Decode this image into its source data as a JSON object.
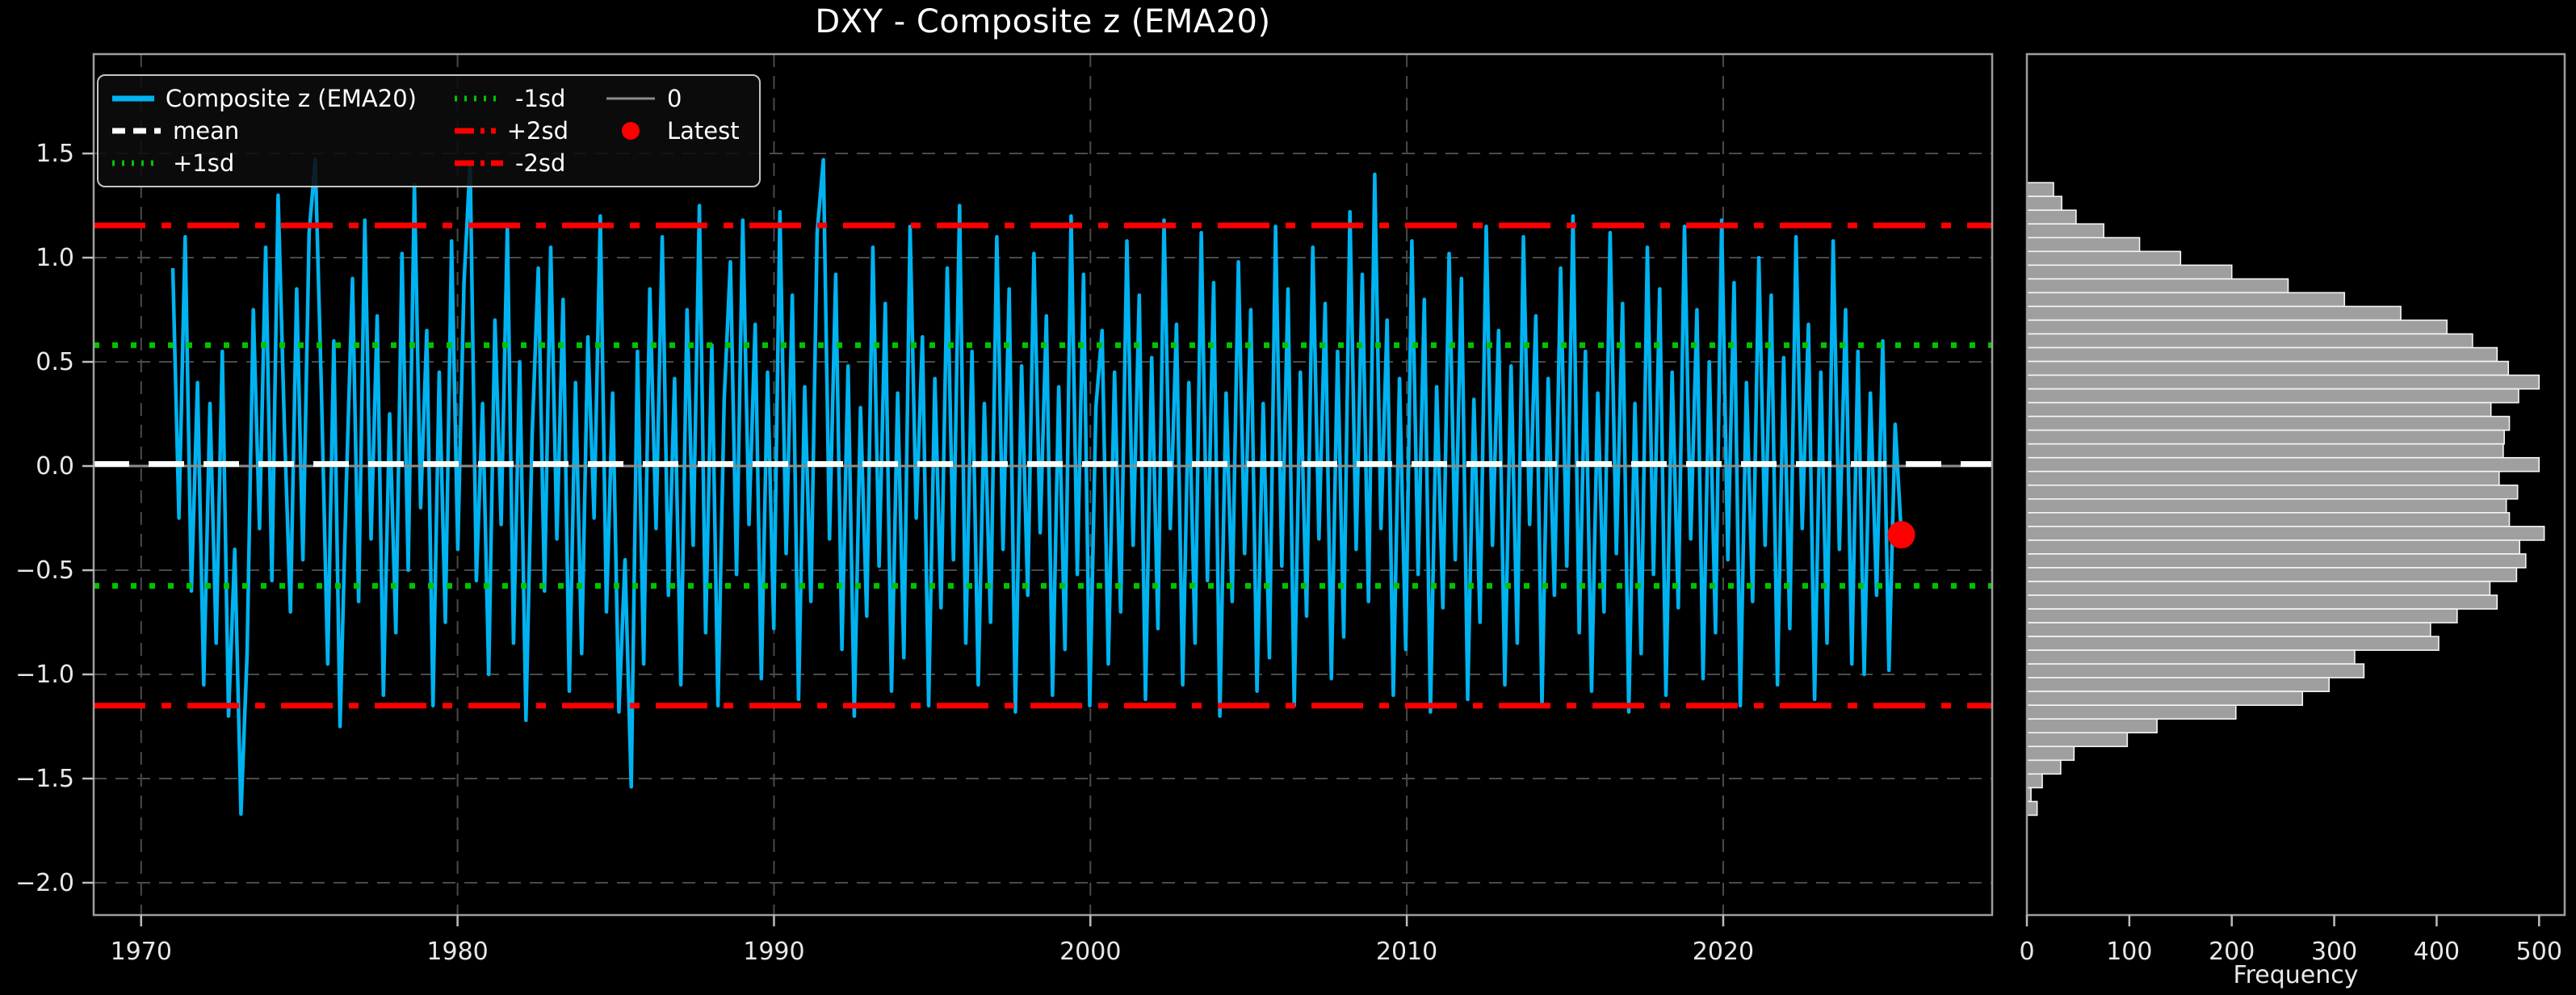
{
  "figure": {
    "title": "DXY - Composite z (EMA20)",
    "background": "#000000"
  },
  "colors": {
    "series": "#00B3F0",
    "mean": "#FFFFFF",
    "sd1": "#00C400",
    "sd2": "#FF0000",
    "zero": "#8C8C8C",
    "latest_dot": "#FF0000",
    "hist_bar": "#9F9F9F",
    "hist_bar_edge": "#F5F5F5",
    "tick_text": "#E8E8E8",
    "title_text": "#FFFFFF"
  },
  "legend": {
    "entries": [
      {
        "label": "Composite z (EMA20)",
        "style": "solid",
        "color": "#00B3F0"
      },
      {
        "label": "mean",
        "style": "dashed",
        "color": "#FFFFFF"
      },
      {
        "label": "+1sd",
        "style": "dotted",
        "color": "#00C400"
      },
      {
        "label": "-1sd",
        "style": "dotted",
        "color": "#00C400"
      },
      {
        "label": "+2sd",
        "style": "dashdot",
        "color": "#FF0000"
      },
      {
        "label": "-2sd",
        "style": "dashdot",
        "color": "#FF0000"
      },
      {
        "label": "0",
        "style": "solid-thin",
        "color": "#8C8C8C"
      },
      {
        "label": "Latest",
        "style": "marker",
        "color": "#FF0000"
      }
    ]
  },
  "chart_data": [
    {
      "type": "line",
      "title": "DXY - Composite z (EMA20)",
      "xlabel": "",
      "ylabel": "",
      "xlim": [
        1968.5,
        2028.5
      ],
      "ylim": [
        -2.155,
        1.977
      ],
      "x_ticks": [
        1970,
        1980,
        1990,
        2000,
        2010,
        2020
      ],
      "x_tick_labels": [
        "1970",
        "1980",
        "1990",
        "2000",
        "2010",
        "2020"
      ],
      "y_ticks": [
        1.5,
        1.0,
        0.5,
        0.0,
        -0.5,
        -1.0,
        -1.5,
        -2.0
      ],
      "y_tick_labels": [
        "1.5",
        "1.0",
        "0.5",
        "0.0",
        "−0.5",
        "−1.0",
        "−1.5",
        "−2.0"
      ],
      "grid": true,
      "legend_position": "upper left",
      "ref_lines": [
        {
          "label": "0",
          "value": 0.0,
          "style": "solid-thin",
          "color": "#8C8C8C",
          "width": 3
        },
        {
          "label": "+1sd",
          "value": 0.58,
          "style": "dotted",
          "color": "#00C400",
          "width": 7
        },
        {
          "label": "-1sd",
          "value": -0.575,
          "style": "dotted",
          "color": "#00C400",
          "width": 7
        },
        {
          "label": "+2sd",
          "value": 1.155,
          "style": "dashdot",
          "color": "#FF0000",
          "width": 7
        },
        {
          "label": "-2sd",
          "value": -1.15,
          "style": "dashdot",
          "color": "#FF0000",
          "width": 7
        },
        {
          "label": "mean",
          "value": 0.01,
          "style": "dashed",
          "color": "#FFFFFF",
          "width": 7
        }
      ],
      "latest": {
        "x": 2025.63,
        "y": -0.33
      },
      "series": {
        "name": "Composite z (EMA20)",
        "x_start": 1971.0,
        "x_end": 2025.63,
        "values": [
          0.95,
          -0.25,
          1.1,
          -0.6,
          0.4,
          -1.05,
          0.3,
          -0.85,
          0.55,
          -1.2,
          -0.4,
          -1.67,
          -0.9,
          0.75,
          -0.3,
          1.05,
          -0.55,
          1.3,
          0.2,
          -0.7,
          0.85,
          -0.45,
          1.12,
          1.47,
          0.35,
          -0.95,
          0.6,
          -1.25,
          -0.1,
          0.9,
          -0.65,
          1.18,
          -0.35,
          0.72,
          -1.1,
          0.25,
          -0.8,
          1.02,
          -0.5,
          1.35,
          -0.2,
          0.65,
          -1.15,
          0.45,
          -0.75,
          1.08,
          -0.4,
          0.88,
          1.46,
          -0.55,
          0.3,
          -1.0,
          0.7,
          -0.28,
          1.15,
          -0.85,
          0.5,
          -1.22,
          0.15,
          0.95,
          -0.6,
          1.05,
          -0.35,
          0.8,
          -1.08,
          0.4,
          -0.9,
          0.62,
          -0.25,
          1.2,
          -0.7,
          0.35,
          -1.18,
          -0.45,
          -1.54,
          0.55,
          -0.95,
          0.85,
          -0.3,
          1.1,
          -0.62,
          0.42,
          -1.05,
          0.75,
          -0.38,
          1.25,
          -0.8,
          0.58,
          -1.15,
          0.32,
          0.98,
          -0.52,
          1.18,
          -0.28,
          0.68,
          -1.02,
          0.45,
          -0.78,
          1.22,
          -0.42,
          0.82,
          -1.12,
          0.38,
          -0.65,
          1.12,
          1.47,
          -0.35,
          0.92,
          -0.88,
          0.48,
          -1.2,
          0.28,
          -0.72,
          1.05,
          -0.48,
          0.78,
          -1.08,
          0.35,
          -0.92,
          1.15,
          -0.25,
          0.62,
          -1.15,
          0.42,
          -0.68,
          0.95,
          -0.45,
          1.25,
          -0.85,
          0.55,
          -1.05,
          0.3,
          -0.75,
          1.1,
          -0.4,
          0.85,
          -1.18,
          0.48,
          -0.62,
          1.02,
          -0.32,
          0.72,
          -1.1,
          0.38,
          -0.88,
          1.2,
          -0.52,
          0.92,
          -1.15,
          0.28,
          0.65,
          -0.95,
          0.45,
          -0.7,
          1.08,
          -0.38,
          0.82,
          -1.12,
          0.52,
          -0.78,
          1.18,
          -0.3,
          0.68,
          -1.05,
          0.4,
          -0.85,
          1.12,
          -0.55,
          0.88,
          -1.2,
          0.35,
          -0.65,
          0.98,
          -0.42,
          0.75,
          -1.08,
          0.3,
          -0.92,
          1.15,
          -0.48,
          0.85,
          -1.15,
          0.45,
          -0.72,
          1.05,
          -0.35,
          0.78,
          -1.02,
          0.55,
          -0.82,
          1.22,
          -0.4,
          0.92,
          -0.65,
          1.4,
          -0.3,
          0.7,
          -1.1,
          0.42,
          -0.88,
          1.08,
          -0.52,
          0.8,
          -1.18,
          0.38,
          -0.68,
          1.02,
          -0.45,
          0.9,
          -1.12,
          0.32,
          -0.75,
          1.15,
          -0.38,
          0.65,
          -1.05,
          0.48,
          -0.85,
          1.1,
          -0.28,
          0.72,
          -1.15,
          0.42,
          -0.62,
          0.95,
          -0.48,
          1.2,
          -0.8,
          0.55,
          -1.08,
          0.35,
          -0.7,
          1.12,
          -0.42,
          0.78,
          -1.18,
          0.3,
          -0.9,
          1.05,
          -0.52,
          0.85,
          -1.1,
          0.45,
          -0.68,
          1.15,
          -0.35,
          0.75,
          -1.02,
          0.5,
          -0.8,
          1.18,
          -0.45,
          0.88,
          -1.15,
          0.4,
          -0.65,
          1.0,
          -0.38,
          0.82,
          -1.05,
          0.52,
          -0.78,
          1.1,
          -0.3,
          0.68,
          -1.12,
          0.45,
          -0.85,
          1.08,
          -0.4,
          0.75,
          -0.95,
          0.55,
          -1.0,
          0.35,
          -0.62,
          0.6,
          -0.98,
          0.2,
          -0.33
        ]
      }
    },
    {
      "type": "bar",
      "orientation": "horizontal-histogram",
      "xlabel": "Frequency",
      "xlim": [
        0,
        525
      ],
      "x_ticks": [
        0,
        100,
        200,
        300,
        400,
        500
      ],
      "x_tick_labels": [
        "0",
        "100",
        "200",
        "300",
        "400",
        "500"
      ],
      "shares_y_with_main": true,
      "z_top": 1.36,
      "bin_width": 0.066,
      "frequencies": [
        26,
        34,
        48,
        75,
        110,
        150,
        200,
        255,
        310,
        365,
        410,
        435,
        459,
        470,
        500,
        480,
        453,
        471,
        466,
        465,
        500,
        461,
        479,
        468,
        471,
        505,
        481,
        487,
        478,
        452,
        459,
        420,
        394,
        402,
        320,
        329,
        295,
        269,
        204,
        127,
        98,
        46,
        33,
        15,
        4,
        10
      ]
    }
  ]
}
